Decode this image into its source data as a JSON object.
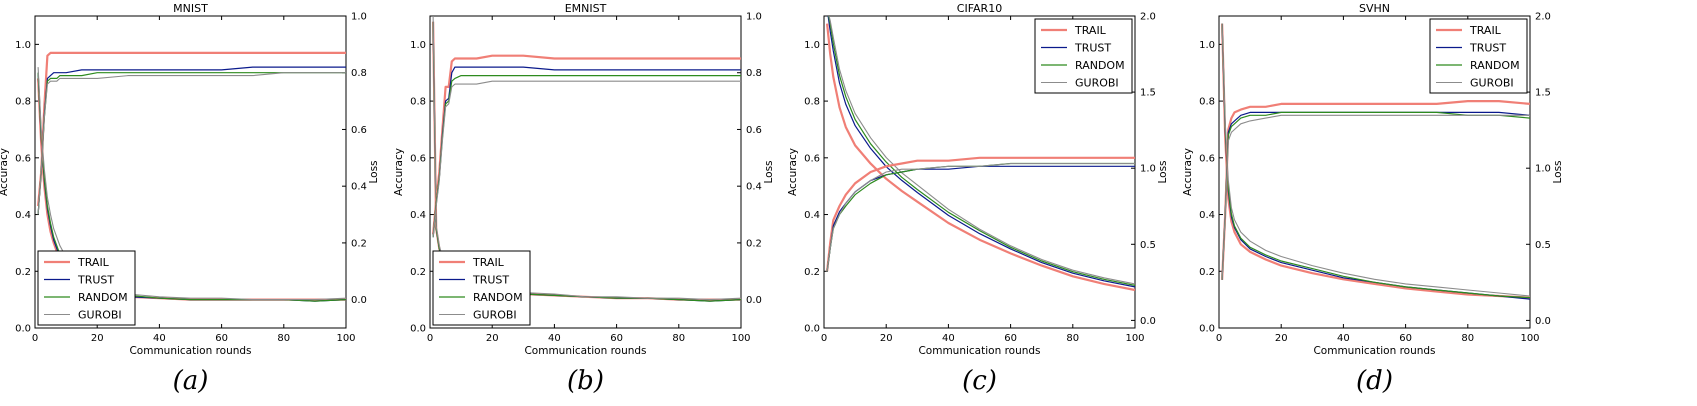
{
  "figure": {
    "subcaptions": [
      "(a)",
      "(b)",
      "(c)",
      "(d)"
    ]
  },
  "colors": {
    "TRAIL": "#f07f76",
    "TRUST": "#0a1a8c",
    "RANDOM": "#2e8b1f",
    "GUROBI": "#8c8c8c"
  },
  "chart_data": [
    {
      "type": "line",
      "title": "MNIST",
      "xlabel": "Communication rounds",
      "ylabel_left": "Accuracy",
      "ylabel_right": "Loss",
      "xlim": [
        0,
        100
      ],
      "ylim_left": [
        0.0,
        1.1
      ],
      "ylim_right": [
        -0.1,
        1.0
      ],
      "xticks": [
        "0",
        "20",
        "40",
        "60",
        "80",
        "100"
      ],
      "yticks_left": [
        "0.0",
        "0.2",
        "0.4",
        "0.6",
        "0.8",
        "1.0"
      ],
      "yticks_right": [
        "0.0",
        "0.2",
        "0.4",
        "0.6",
        "0.8",
        "1.0"
      ],
      "legend_loc": "lower-left",
      "legend": [
        "TRAIL",
        "TRUST",
        "RANDOM",
        "GUROBI"
      ],
      "x": [
        1,
        2,
        3,
        4,
        5,
        6,
        7,
        8,
        10,
        15,
        20,
        30,
        40,
        50,
        60,
        70,
        80,
        90,
        100
      ],
      "accuracy_series": [
        {
          "name": "TRAIL",
          "values": [
            0.43,
            0.55,
            0.78,
            0.96,
            0.97,
            0.97,
            0.97,
            0.97,
            0.97,
            0.97,
            0.97,
            0.97,
            0.97,
            0.97,
            0.97,
            0.97,
            0.97,
            0.97,
            0.97
          ]
        },
        {
          "name": "TRUST",
          "values": [
            0.4,
            0.55,
            0.75,
            0.88,
            0.89,
            0.9,
            0.9,
            0.9,
            0.9,
            0.91,
            0.91,
            0.91,
            0.91,
            0.91,
            0.91,
            0.92,
            0.92,
            0.92,
            0.92
          ]
        },
        {
          "name": "RANDOM",
          "values": [
            0.4,
            0.55,
            0.74,
            0.87,
            0.88,
            0.88,
            0.88,
            0.89,
            0.89,
            0.89,
            0.9,
            0.9,
            0.9,
            0.9,
            0.9,
            0.9,
            0.9,
            0.9,
            0.9
          ]
        },
        {
          "name": "GUROBI",
          "values": [
            0.4,
            0.55,
            0.74,
            0.86,
            0.87,
            0.87,
            0.87,
            0.88,
            0.88,
            0.88,
            0.88,
            0.89,
            0.89,
            0.89,
            0.89,
            0.89,
            0.9,
            0.9,
            0.9
          ]
        }
      ],
      "loss_series": [
        {
          "name": "TRAIL",
          "values": [
            0.78,
            0.55,
            0.4,
            0.3,
            0.24,
            0.2,
            0.17,
            0.14,
            0.11,
            0.06,
            0.04,
            0.01,
            0.005,
            0.0,
            0.0,
            0.0,
            0.0,
            0.0,
            0.0
          ]
        },
        {
          "name": "TRUST",
          "values": [
            0.8,
            0.57,
            0.42,
            0.32,
            0.26,
            0.21,
            0.18,
            0.15,
            0.12,
            0.06,
            0.04,
            0.01,
            0.005,
            0.0,
            0.0,
            0.0,
            0.0,
            -0.005,
            0.0
          ]
        },
        {
          "name": "RANDOM",
          "values": [
            0.8,
            0.58,
            0.43,
            0.33,
            0.27,
            0.22,
            0.19,
            0.16,
            0.13,
            0.07,
            0.045,
            0.015,
            0.005,
            0.0,
            0.0,
            0.0,
            0.0,
            -0.005,
            0.0
          ]
        },
        {
          "name": "GUROBI",
          "values": [
            0.82,
            0.6,
            0.46,
            0.36,
            0.3,
            0.25,
            0.22,
            0.19,
            0.15,
            0.09,
            0.06,
            0.02,
            0.01,
            0.005,
            0.005,
            0.0,
            0.0,
            0.0,
            0.005
          ]
        }
      ]
    },
    {
      "type": "line",
      "title": "EMNIST",
      "xlabel": "Communication rounds",
      "ylabel_left": "Accuracy",
      "ylabel_right": "Loss",
      "xlim": [
        0,
        100
      ],
      "ylim_left": [
        0.0,
        1.1
      ],
      "ylim_right": [
        -0.1,
        1.0
      ],
      "xticks": [
        "0",
        "20",
        "40",
        "60",
        "80",
        "100"
      ],
      "yticks_left": [
        "0.0",
        "0.2",
        "0.4",
        "0.6",
        "0.8",
        "1.0"
      ],
      "yticks_right": [
        "0.0",
        "0.2",
        "0.4",
        "0.6",
        "0.8",
        "1.0"
      ],
      "legend_loc": "lower-left",
      "legend": [
        "TRAIL",
        "TRUST",
        "RANDOM",
        "GUROBI"
      ],
      "x": [
        1,
        2,
        3,
        4,
        5,
        6,
        7,
        8,
        10,
        15,
        20,
        30,
        40,
        50,
        60,
        70,
        80,
        90,
        100
      ],
      "accuracy_series": [
        {
          "name": "TRAIL",
          "values": [
            0.33,
            0.45,
            0.55,
            0.7,
            0.85,
            0.85,
            0.94,
            0.95,
            0.95,
            0.95,
            0.96,
            0.96,
            0.95,
            0.95,
            0.95,
            0.95,
            0.95,
            0.95,
            0.95
          ]
        },
        {
          "name": "TRUST",
          "values": [
            0.32,
            0.44,
            0.53,
            0.68,
            0.8,
            0.81,
            0.9,
            0.92,
            0.92,
            0.92,
            0.92,
            0.92,
            0.91,
            0.91,
            0.91,
            0.91,
            0.91,
            0.91,
            0.91
          ]
        },
        {
          "name": "RANDOM",
          "values": [
            0.32,
            0.44,
            0.53,
            0.67,
            0.79,
            0.8,
            0.87,
            0.88,
            0.89,
            0.89,
            0.89,
            0.89,
            0.89,
            0.89,
            0.89,
            0.89,
            0.89,
            0.89,
            0.89
          ]
        },
        {
          "name": "GUROBI",
          "values": [
            0.32,
            0.43,
            0.52,
            0.66,
            0.78,
            0.79,
            0.85,
            0.86,
            0.86,
            0.86,
            0.87,
            0.87,
            0.87,
            0.87,
            0.87,
            0.87,
            0.87,
            0.87,
            0.87
          ]
        }
      ],
      "loss_series": [
        {
          "name": "TRAIL",
          "values": [
            0.98,
            0.25,
            0.18,
            0.14,
            0.12,
            0.1,
            0.09,
            0.08,
            0.07,
            0.05,
            0.04,
            0.02,
            0.015,
            0.01,
            0.005,
            0.005,
            0.0,
            0.0,
            0.0
          ]
        },
        {
          "name": "TRUST",
          "values": [
            0.98,
            0.25,
            0.18,
            0.14,
            0.12,
            0.1,
            0.09,
            0.08,
            0.07,
            0.05,
            0.04,
            0.02,
            0.015,
            0.01,
            0.005,
            0.005,
            0.0,
            -0.005,
            0.0
          ]
        },
        {
          "name": "RANDOM",
          "values": [
            0.98,
            0.25,
            0.18,
            0.15,
            0.12,
            0.1,
            0.09,
            0.08,
            0.07,
            0.05,
            0.04,
            0.02,
            0.015,
            0.01,
            0.005,
            0.005,
            0.0,
            -0.005,
            0.0
          ]
        },
        {
          "name": "GUROBI",
          "values": [
            1.0,
            0.26,
            0.19,
            0.15,
            0.13,
            0.11,
            0.1,
            0.09,
            0.08,
            0.06,
            0.045,
            0.025,
            0.02,
            0.01,
            0.01,
            0.005,
            0.005,
            0.0,
            0.005
          ]
        }
      ]
    },
    {
      "type": "line",
      "title": "CIFAR10",
      "xlabel": "Communication rounds",
      "ylabel_left": "Accuracy",
      "ylabel_right": "Loss",
      "xlim": [
        0,
        100
      ],
      "ylim_left": [
        0.0,
        1.1
      ],
      "ylim_right": [
        -0.05,
        2.0
      ],
      "xticks": [
        "0",
        "20",
        "40",
        "60",
        "80",
        "100"
      ],
      "yticks_left": [
        "0.0",
        "0.2",
        "0.4",
        "0.6",
        "0.8",
        "1.0"
      ],
      "yticks_right": [
        "0.0",
        "0.5",
        "1.0",
        "1.5",
        "2.0"
      ],
      "legend_loc": "upper-right",
      "legend": [
        "TRAIL",
        "TRUST",
        "RANDOM",
        "GUROBI"
      ],
      "x": [
        1,
        2,
        3,
        5,
        7,
        10,
        15,
        20,
        25,
        30,
        40,
        50,
        60,
        70,
        80,
        90,
        100
      ],
      "accuracy_series": [
        {
          "name": "TRAIL",
          "values": [
            0.2,
            0.3,
            0.38,
            0.43,
            0.47,
            0.51,
            0.55,
            0.57,
            0.58,
            0.59,
            0.59,
            0.6,
            0.6,
            0.6,
            0.6,
            0.6,
            0.6
          ]
        },
        {
          "name": "TRUST",
          "values": [
            0.2,
            0.28,
            0.36,
            0.41,
            0.44,
            0.48,
            0.52,
            0.54,
            0.55,
            0.56,
            0.56,
            0.57,
            0.57,
            0.57,
            0.57,
            0.57,
            0.57
          ]
        },
        {
          "name": "RANDOM",
          "values": [
            0.2,
            0.28,
            0.35,
            0.4,
            0.43,
            0.47,
            0.51,
            0.54,
            0.55,
            0.56,
            0.57,
            0.57,
            0.58,
            0.58,
            0.58,
            0.58,
            0.58
          ]
        },
        {
          "name": "GUROBI",
          "values": [
            0.2,
            0.28,
            0.35,
            0.4,
            0.44,
            0.48,
            0.52,
            0.55,
            0.56,
            0.56,
            0.57,
            0.57,
            0.58,
            0.58,
            0.58,
            0.58,
            0.58
          ]
        }
      ],
      "loss_series": [
        {
          "name": "TRAIL",
          "values": [
            1.95,
            1.75,
            1.6,
            1.4,
            1.27,
            1.15,
            1.03,
            0.93,
            0.85,
            0.78,
            0.64,
            0.53,
            0.44,
            0.36,
            0.29,
            0.24,
            0.2
          ]
        },
        {
          "name": "TRUST",
          "values": [
            2.05,
            1.9,
            1.77,
            1.56,
            1.42,
            1.28,
            1.13,
            1.01,
            0.92,
            0.84,
            0.69,
            0.57,
            0.47,
            0.38,
            0.31,
            0.26,
            0.22
          ]
        },
        {
          "name": "RANDOM",
          "values": [
            2.05,
            1.95,
            1.82,
            1.61,
            1.47,
            1.32,
            1.16,
            1.04,
            0.94,
            0.86,
            0.71,
            0.59,
            0.48,
            0.39,
            0.32,
            0.27,
            0.23
          ]
        },
        {
          "name": "GUROBI",
          "values": [
            2.05,
            1.97,
            1.86,
            1.65,
            1.51,
            1.36,
            1.2,
            1.07,
            0.97,
            0.89,
            0.73,
            0.6,
            0.49,
            0.4,
            0.33,
            0.28,
            0.24
          ]
        }
      ]
    },
    {
      "type": "line",
      "title": "SVHN",
      "xlabel": "Communication rounds",
      "ylabel_left": "Accuracy",
      "ylabel_right": "Loss",
      "xlim": [
        0,
        100
      ],
      "ylim_left": [
        0.0,
        1.1
      ],
      "ylim_right": [
        -0.05,
        2.0
      ],
      "xticks": [
        "0",
        "20",
        "40",
        "60",
        "80",
        "100"
      ],
      "yticks_left": [
        "0.0",
        "0.2",
        "0.4",
        "0.6",
        "0.8",
        "1.0"
      ],
      "yticks_right": [
        "0.0",
        "0.5",
        "1.0",
        "1.5",
        "2.0"
      ],
      "legend_loc": "upper-right",
      "legend": [
        "TRAIL",
        "TRUST",
        "RANDOM",
        "GUROBI"
      ],
      "x": [
        1,
        2,
        3,
        4,
        5,
        7,
        10,
        15,
        20,
        30,
        40,
        50,
        60,
        70,
        80,
        90,
        100
      ],
      "accuracy_series": [
        {
          "name": "TRAIL",
          "values": [
            0.17,
            0.4,
            0.7,
            0.74,
            0.76,
            0.77,
            0.78,
            0.78,
            0.79,
            0.79,
            0.79,
            0.79,
            0.79,
            0.79,
            0.8,
            0.8,
            0.79
          ]
        },
        {
          "name": "TRUST",
          "values": [
            0.17,
            0.4,
            0.69,
            0.72,
            0.73,
            0.75,
            0.76,
            0.76,
            0.76,
            0.76,
            0.76,
            0.76,
            0.76,
            0.76,
            0.76,
            0.76,
            0.75
          ]
        },
        {
          "name": "RANDOM",
          "values": [
            0.17,
            0.4,
            0.68,
            0.71,
            0.72,
            0.74,
            0.75,
            0.75,
            0.76,
            0.76,
            0.76,
            0.76,
            0.76,
            0.76,
            0.75,
            0.75,
            0.74
          ]
        },
        {
          "name": "GUROBI",
          "values": [
            0.17,
            0.4,
            0.66,
            0.69,
            0.7,
            0.72,
            0.73,
            0.74,
            0.75,
            0.75,
            0.75,
            0.75,
            0.75,
            0.75,
            0.75,
            0.75,
            0.75
          ]
        }
      ],
      "loss_series": [
        {
          "name": "TRAIL",
          "values": [
            1.95,
            1.2,
            0.8,
            0.65,
            0.58,
            0.5,
            0.45,
            0.4,
            0.36,
            0.31,
            0.27,
            0.24,
            0.21,
            0.19,
            0.17,
            0.16,
            0.15
          ]
        },
        {
          "name": "TRUST",
          "values": [
            1.95,
            1.25,
            0.85,
            0.68,
            0.61,
            0.53,
            0.47,
            0.42,
            0.38,
            0.33,
            0.28,
            0.25,
            0.22,
            0.2,
            0.18,
            0.16,
            0.14
          ]
        },
        {
          "name": "RANDOM",
          "values": [
            1.95,
            1.27,
            0.87,
            0.7,
            0.62,
            0.54,
            0.48,
            0.43,
            0.39,
            0.34,
            0.29,
            0.25,
            0.22,
            0.2,
            0.18,
            0.16,
            0.15
          ]
        },
        {
          "name": "GUROBI",
          "values": [
            1.95,
            1.3,
            0.92,
            0.74,
            0.66,
            0.58,
            0.52,
            0.46,
            0.42,
            0.36,
            0.31,
            0.27,
            0.24,
            0.22,
            0.2,
            0.18,
            0.16
          ]
        }
      ]
    }
  ]
}
